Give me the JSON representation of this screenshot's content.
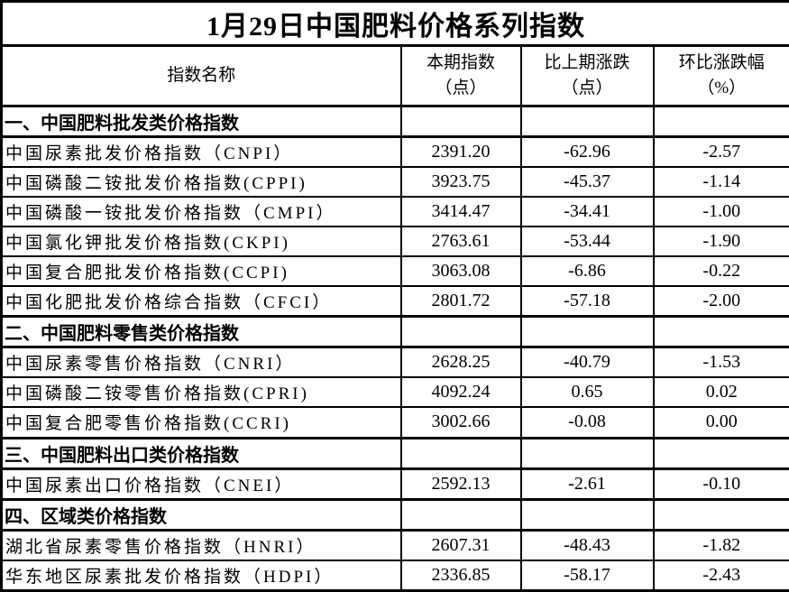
{
  "title": "1月29日中国肥料价格系列指数",
  "header": {
    "name_col": "指数名称",
    "cols": [
      {
        "line1": "本期指数",
        "line2": "（点）"
      },
      {
        "line1": "比上期涨跌",
        "line2": "（点）"
      },
      {
        "line1": "环比涨跌幅",
        "line2": "（%）"
      }
    ]
  },
  "rows": [
    {
      "kind": "section",
      "name": "一、中国肥料批发类价格指数",
      "index": "",
      "change": "",
      "pct": ""
    },
    {
      "kind": "data",
      "name": "中国尿素批发价格指数（CNPI）",
      "index": "2391.20",
      "change": "-62.96",
      "pct": "-2.57"
    },
    {
      "kind": "data",
      "name": "中国磷酸二铵批发价格指数(CPPI)",
      "index": "3923.75",
      "change": "-45.37",
      "pct": "-1.14"
    },
    {
      "kind": "data",
      "name": "中国磷酸一铵批发价格指数（CMPI）",
      "index": "3414.47",
      "change": "-34.41",
      "pct": "-1.00"
    },
    {
      "kind": "data",
      "name": "中国氯化钾批发价格指数(CKPI)",
      "index": "2763.61",
      "change": "-53.44",
      "pct": "-1.90"
    },
    {
      "kind": "data",
      "name": "中国复合肥批发价格指数(CCPI)",
      "index": "3063.08",
      "change": "-6.86",
      "pct": "-0.22"
    },
    {
      "kind": "data",
      "name": "中国化肥批发价格综合指数（CFCI）",
      "index": "2801.72",
      "change": "-57.18",
      "pct": "-2.00"
    },
    {
      "kind": "section",
      "name": "二、中国肥料零售类价格指数",
      "index": "",
      "change": "",
      "pct": ""
    },
    {
      "kind": "data",
      "name": "中国尿素零售价格指数（CNRI）",
      "index": "2628.25",
      "change": "-40.79",
      "pct": "-1.53"
    },
    {
      "kind": "data",
      "name": "中国磷酸二铵零售价格指数(CPRI)",
      "index": "4092.24",
      "change": "0.65",
      "pct": "0.02"
    },
    {
      "kind": "data",
      "name": "中国复合肥零售价格指数(CCRI)",
      "index": "3002.66",
      "change": "-0.08",
      "pct": "0.00"
    },
    {
      "kind": "section",
      "name": "三、中国肥料出口类价格指数",
      "index": "",
      "change": "",
      "pct": ""
    },
    {
      "kind": "data",
      "name": "中国尿素出口价格指数（CNEI）",
      "index": "2592.13",
      "change": "-2.61",
      "pct": "-0.10"
    },
    {
      "kind": "section",
      "name": "四、区域类价格指数",
      "index": "",
      "change": "",
      "pct": ""
    },
    {
      "kind": "data",
      "name": "湖北省尿素零售价格指数（HNRI）",
      "index": "2607.31",
      "change": "-48.43",
      "pct": "-1.82"
    },
    {
      "kind": "data",
      "name": "华东地区尿素批发价格指数（HDPI）",
      "index": "2336.85",
      "change": "-58.17",
      "pct": "-2.43"
    }
  ],
  "colors": {
    "text": "#000000",
    "border": "#000000",
    "background": "#ffffff"
  }
}
